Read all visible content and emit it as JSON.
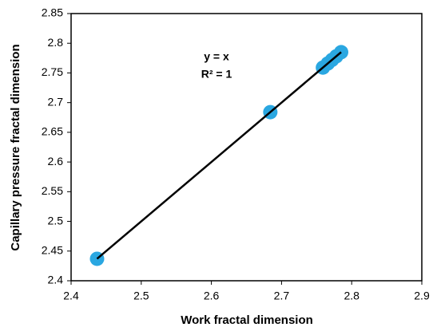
{
  "chart_data": {
    "type": "scatter",
    "x_label": "Work fractal dimension",
    "y_label": "Capillary pressure fractal dimension",
    "annotations": [
      "y = x",
      "R² = 1"
    ],
    "series": [
      {
        "kind": "scatter",
        "color": "#2aa7e1",
        "x": [
          2.437,
          2.684,
          2.759,
          2.766,
          2.772,
          2.778,
          2.785
        ],
        "values": [
          2.437,
          2.684,
          2.759,
          2.766,
          2.772,
          2.778,
          2.785
        ]
      },
      {
        "kind": "line",
        "color": "#000000",
        "x": [
          2.437,
          2.785
        ],
        "values": [
          2.437,
          2.785
        ]
      }
    ],
    "xlim": [
      2.4,
      2.9
    ],
    "xticks": [
      2.4,
      2.5,
      2.6,
      2.7,
      2.8,
      2.9
    ],
    "ylim": [
      2.4,
      2.85
    ],
    "yticks": [
      2.4,
      2.45,
      2.5,
      2.55,
      2.6,
      2.65,
      2.7,
      2.75,
      2.8,
      2.85
    ],
    "grid": false
  }
}
